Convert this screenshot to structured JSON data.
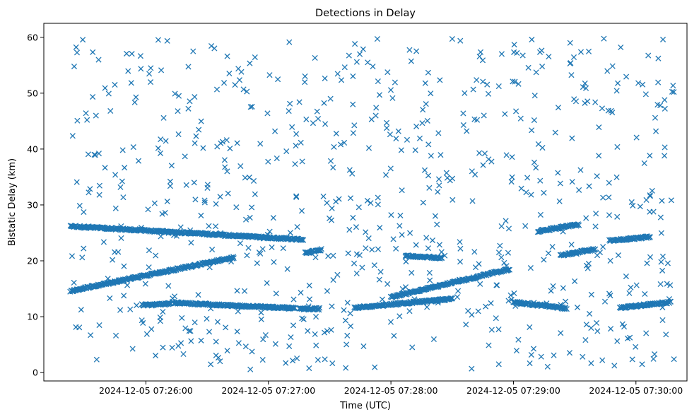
{
  "chart_data": {
    "type": "scatter",
    "title": "Detections in Delay",
    "xlabel": "Time (UTC)",
    "ylabel": "Bistatic Delay (km)",
    "marker": "x",
    "color": "#1f77b4",
    "grid": false,
    "legend": "none",
    "x_unit": "time (HH:MM:SS)",
    "xlim": [
      "07:25:10",
      "07:30:25"
    ],
    "ylim": [
      -1.5,
      62.5
    ],
    "x_ticks": [
      {
        "label": "2024-12-05 07:26:00",
        "value": "07:26:00"
      },
      {
        "label": "2024-12-05 07:27:00",
        "value": "07:27:00"
      },
      {
        "label": "2024-12-05 07:28:00",
        "value": "07:28:00"
      },
      {
        "label": "2024-12-05 07:29:00",
        "value": "07:29:00"
      },
      {
        "label": "2024-12-05 07:30:00",
        "value": "07:30:00"
      }
    ],
    "y_ticks": [
      0,
      10,
      20,
      30,
      40,
      50,
      60
    ],
    "tracks": [
      {
        "x": [
          "07:25:23",
          "07:27:17"
        ],
        "y": [
          26.2,
          23.8
        ]
      },
      {
        "x": [
          "07:25:23",
          "07:26:43"
        ],
        "y": [
          14.6,
          20.6
        ]
      },
      {
        "x": [
          "07:26:13",
          "07:27:13"
        ],
        "y": [
          12.5,
          11.5
        ]
      },
      {
        "x": [
          "07:25:58",
          "07:26:12"
        ],
        "y": [
          12.1,
          12.3
        ]
      },
      {
        "x": [
          "07:27:15",
          "07:27:25"
        ],
        "y": [
          11.4,
          11.4
        ]
      },
      {
        "x": [
          "07:27:18",
          "07:27:26"
        ],
        "y": [
          21.4,
          22.0
        ]
      },
      {
        "x": [
          "07:27:42",
          "07:28:30"
        ],
        "y": [
          11.6,
          13.2
        ]
      },
      {
        "x": [
          "07:28:00",
          "07:28:58"
        ],
        "y": [
          13.5,
          18.5
        ]
      },
      {
        "x": [
          "07:28:07",
          "07:28:25"
        ],
        "y": [
          20.9,
          20.5
        ]
      },
      {
        "x": [
          "07:29:00",
          "07:29:26"
        ],
        "y": [
          12.6,
          11.5
        ]
      },
      {
        "x": [
          "07:29:12",
          "07:29:32"
        ],
        "y": [
          25.3,
          26.5
        ]
      },
      {
        "x": [
          "07:29:23",
          "07:29:40"
        ],
        "y": [
          21.0,
          22.1
        ]
      },
      {
        "x": [
          "07:29:47",
          "07:30:07"
        ],
        "y": [
          23.6,
          24.3
        ]
      },
      {
        "x": [
          "07:29:52",
          "07:30:17"
        ],
        "y": [
          11.6,
          12.6
        ]
      }
    ],
    "noise": {
      "count": 720,
      "x_range": [
        "07:25:23",
        "07:30:19"
      ],
      "y_range": [
        0.5,
        59.8
      ]
    }
  }
}
